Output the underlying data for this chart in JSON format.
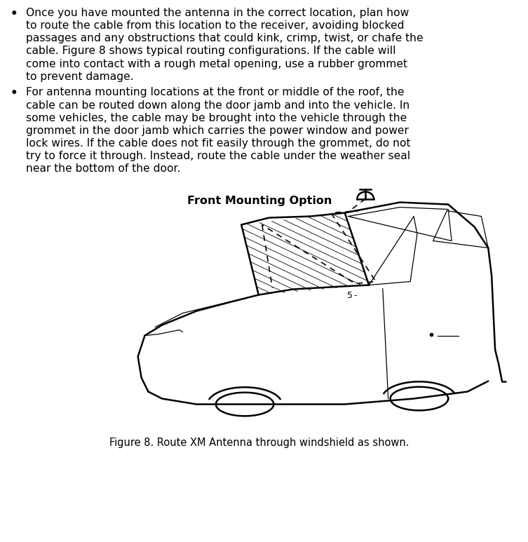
{
  "background_color": "#ffffff",
  "bullet1_line1": "Once you have mounted the antenna in the correct location, plan how",
  "bullet1_line2": "to route the cable from this location to the receiver, avoiding blocked",
  "bullet1_line3": "passages and any obstructions that could kink, crimp, twist, or chafe the",
  "bullet1_line4": "cable. Figure 8 shows typical routing configurations. If the cable will",
  "bullet1_line5": "come into contact with a rough metal opening, use a rubber grommet",
  "bullet1_line6": "to prevent damage.",
  "bullet2_line1": "For antenna mounting locations at the front or middle of the roof, the",
  "bullet2_line2": "cable can be routed down along the door jamb and into the vehicle. In",
  "bullet2_line3": "some vehicles, the cable may be brought into the vehicle through the",
  "bullet2_line4": "grommet in the door jamb which carries the power window and power",
  "bullet2_line5": "lock wires. If the cable does not fit easily through the grommet, do not",
  "bullet2_line6": "try to force it through. Instead, route the cable under the weather seal",
  "bullet2_line7": "near the bottom of the door.",
  "figure_heading": "Front Mounting Option",
  "figure_caption": "Figure 8. Route XM Antenna through windshield as shown.",
  "text_color": "#000000",
  "font_size_body": 11.2,
  "font_size_caption": 10.5,
  "font_size_heading": 11.5,
  "bullet_symbol": "•"
}
